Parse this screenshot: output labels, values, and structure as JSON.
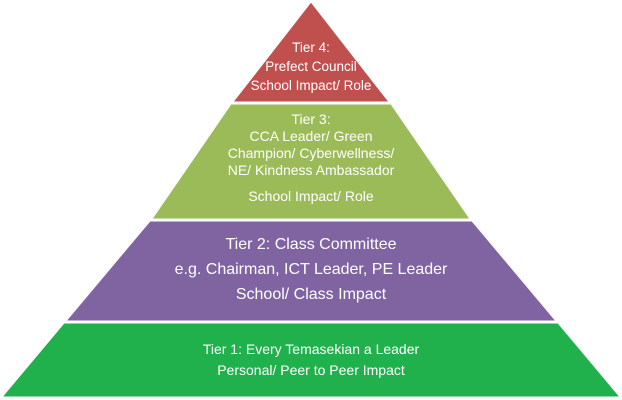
{
  "colors": {
    "tier4": "#c0504d",
    "tier3": "#9bbb59",
    "tier2": "#8064a2",
    "tier1": "#21b14c",
    "outline": "#ffffff",
    "text": "#ffffff"
  },
  "tiers": [
    {
      "id": "tier4",
      "lines": [
        "Tier 4:",
        "Prefect Council",
        "School Impact/ Role"
      ]
    },
    {
      "id": "tier3",
      "lines": [
        "Tier 3:",
        "CCA Leader/ Green",
        "Champion/ Cyberwellness/",
        "NE/ Kindness Ambassador",
        "School Impact/  Role"
      ]
    },
    {
      "id": "tier2",
      "lines": [
        "Tier 2: Class Committee",
        "e.g. Chairman,  ICT Leader, PE Leader",
        "School/ Class Impact"
      ]
    },
    {
      "id": "tier1",
      "lines": [
        "Tier 1: Every Temasekian a Leader",
        "Personal/ Peer to Peer Impact"
      ]
    }
  ]
}
